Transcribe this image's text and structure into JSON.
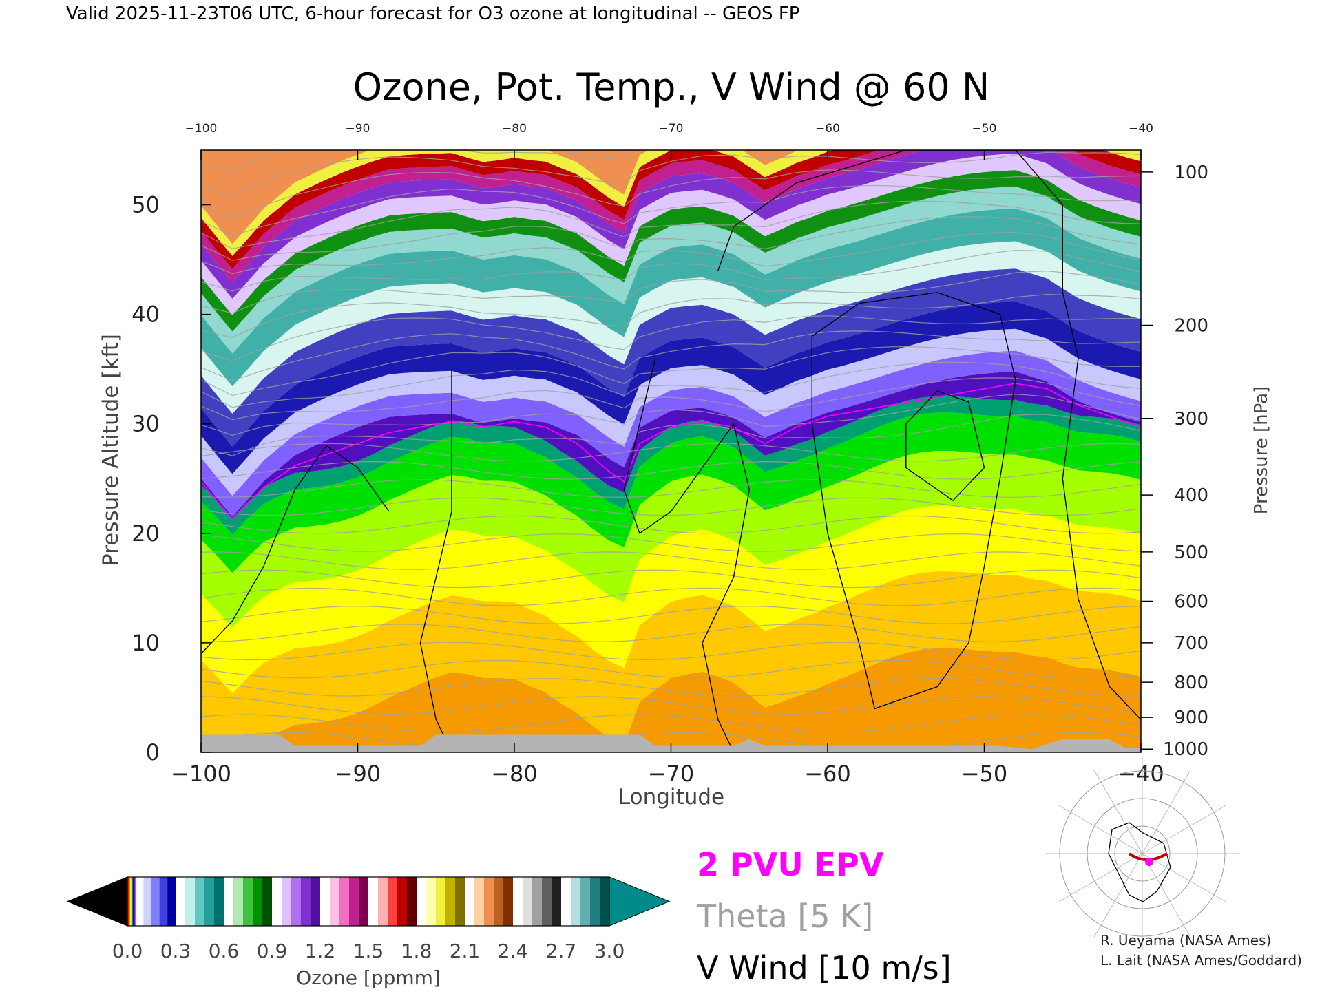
{
  "header": {
    "valid_text": "Valid 2025-11-23T06 UTC, 6-hour forecast for O3 ozone at longitudinal -- GEOS FP"
  },
  "chart_data": {
    "type": "heatmap",
    "title": "Ozone, Pot. Temp., V Wind @ 60 N",
    "xlabel": "Longitude",
    "ylabel": "Pressure Altitude [kft]",
    "y2label": "Pressure [hPa]",
    "xlim": [
      -100,
      -40
    ],
    "ylim": [
      0,
      55
    ],
    "x_ticks": [
      -100,
      -90,
      -80,
      -70,
      -60,
      -50,
      -40
    ],
    "x_tick_labels": [
      "−100",
      "−90",
      "−80",
      "−70",
      "−60",
      "−50",
      "−40"
    ],
    "top_tick_labels": [
      "−100",
      "−90",
      "−80",
      "−70",
      "−60",
      "−50",
      "−40"
    ],
    "y_ticks": [
      0,
      10,
      20,
      30,
      40,
      50
    ],
    "pressure_ticks": [
      {
        "label": "100",
        "kft": 53.0
      },
      {
        "label": "200",
        "kft": 39.0
      },
      {
        "label": "300",
        "kft": 30.5
      },
      {
        "label": "400",
        "kft": 23.5
      },
      {
        "label": "500",
        "kft": 18.3
      },
      {
        "label": "600",
        "kft": 13.8
      },
      {
        "label": "700",
        "kft": 10.0
      },
      {
        "label": "800",
        "kft": 6.4
      },
      {
        "label": "900",
        "kft": 3.2
      },
      {
        "label": "1000",
        "kft": 0.3
      }
    ],
    "tropopause_kft": [
      {
        "x": -100,
        "y": 25.0
      },
      {
        "x": -98,
        "y": 21.5
      },
      {
        "x": -96,
        "y": 24.5
      },
      {
        "x": -94,
        "y": 26.5
      },
      {
        "x": -92,
        "y": 27.5
      },
      {
        "x": -90,
        "y": 28.5
      },
      {
        "x": -88,
        "y": 29.5
      },
      {
        "x": -86,
        "y": 30.0
      },
      {
        "x": -84,
        "y": 30.5
      },
      {
        "x": -82,
        "y": 30.0
      },
      {
        "x": -80,
        "y": 30.5
      },
      {
        "x": -78,
        "y": 30.0
      },
      {
        "x": -76,
        "y": 28.5
      },
      {
        "x": -74,
        "y": 26.0
      },
      {
        "x": -73,
        "y": 25.0
      },
      {
        "x": -72,
        "y": 28.5
      },
      {
        "x": -70,
        "y": 30.0
      },
      {
        "x": -68,
        "y": 30.5
      },
      {
        "x": -66,
        "y": 30.0
      },
      {
        "x": -64,
        "y": 28.5
      },
      {
        "x": -62,
        "y": 30.0
      },
      {
        "x": -60,
        "y": 31.0
      },
      {
        "x": -58,
        "y": 31.5
      },
      {
        "x": -56,
        "y": 32.0
      },
      {
        "x": -54,
        "y": 32.5
      },
      {
        "x": -52,
        "y": 33.0
      },
      {
        "x": -50,
        "y": 33.5
      },
      {
        "x": -48,
        "y": 34.0
      },
      {
        "x": -46,
        "y": 33.5
      },
      {
        "x": -44,
        "y": 32.0
      },
      {
        "x": -42,
        "y": 31.0
      },
      {
        "x": -40,
        "y": 30.0
      }
    ],
    "colorbar": {
      "label": "Ozone [ppmm]",
      "tick_labels": [
        "0.0",
        "0.3",
        "0.6",
        "0.9",
        "1.2",
        "1.5",
        "1.8",
        "2.1",
        "2.4",
        "2.7",
        "3.0"
      ],
      "range": [
        0.0,
        3.0
      ],
      "under_color": "#000000",
      "over_color": "#008b8b",
      "groups": [
        {
          "from": 0.0,
          "to": 0.05,
          "colors": [
            "#ff0000",
            "#ff8000",
            "#ffff00",
            "#00c000",
            "#0000ff",
            "#8000ff"
          ]
        },
        {
          "from": 0.05,
          "to": 0.3,
          "colors": [
            "#ffffff",
            "#d0d0ff",
            "#8080ff",
            "#4040e0",
            "#0000a0"
          ]
        },
        {
          "from": 0.3,
          "to": 0.6,
          "colors": [
            "#ffffff",
            "#c0f0ea",
            "#60c8c0",
            "#20a098",
            "#007070"
          ]
        },
        {
          "from": 0.6,
          "to": 0.9,
          "colors": [
            "#ffffff",
            "#b0e8b0",
            "#40c040",
            "#009000",
            "#005000"
          ]
        },
        {
          "from": 0.9,
          "to": 1.2,
          "colors": [
            "#ffffff",
            "#e0c0ff",
            "#b070f0",
            "#8030d0",
            "#5010a0"
          ]
        },
        {
          "from": 1.2,
          "to": 1.5,
          "colors": [
            "#ffffff",
            "#ffc0e8",
            "#f070c0",
            "#c02090",
            "#800050"
          ]
        },
        {
          "from": 1.5,
          "to": 1.8,
          "colors": [
            "#ffffff",
            "#ffb0b0",
            "#ff4040",
            "#c00000",
            "#600000"
          ]
        },
        {
          "from": 1.8,
          "to": 2.1,
          "colors": [
            "#ffffff",
            "#ffffb0",
            "#f0f040",
            "#c0b000",
            "#807000"
          ]
        },
        {
          "from": 2.1,
          "to": 2.4,
          "colors": [
            "#ffffff",
            "#ffd0a0",
            "#f09050",
            "#c06020",
            "#803000"
          ]
        },
        {
          "from": 2.4,
          "to": 2.7,
          "colors": [
            "#ffffff",
            "#e0e0e0",
            "#a0a0a0",
            "#606060",
            "#202020"
          ]
        },
        {
          "from": 2.7,
          "to": 3.0,
          "colors": [
            "#ffffff",
            "#b0e0e0",
            "#60b0b0",
            "#208080",
            "#005050"
          ]
        }
      ]
    }
  },
  "legend": {
    "epv_label": "2 PVU EPV",
    "epv_color": "#ff00ff",
    "theta_label": "Theta [5 K]",
    "theta_color": "#a0a0a0",
    "vwind_label": "V Wind [10 m/s]",
    "vwind_color": "#000000"
  },
  "credits": {
    "line1": "R. Ueyama (NASA Ames)",
    "line2": "L. Lait (NASA Ames/Goddard)"
  },
  "locator_map": {
    "description_icon": "polar-map-icon",
    "track_color": "#c00000",
    "marker_color": "#ff00ff"
  }
}
